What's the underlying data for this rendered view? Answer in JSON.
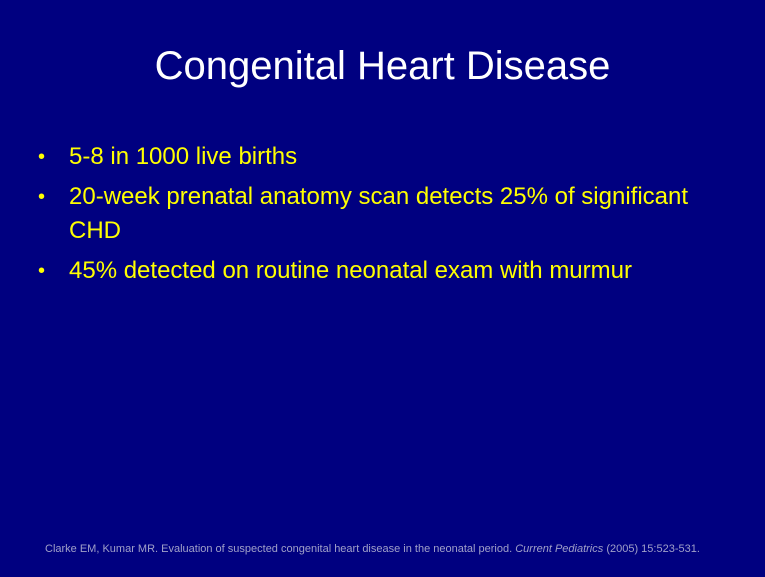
{
  "slide": {
    "title": "Congenital Heart Disease",
    "bullets": [
      "5-8 in 1000 live births",
      "20-week prenatal anatomy scan detects 25% of significant CHD",
      "45% detected on routine neonatal exam with murmur"
    ],
    "bullet_glyph": "•",
    "citation": {
      "authors_title": "Clarke EM, Kumar MR. Evaluation of suspected congenital heart disease in the neonatal period. ",
      "journal": "Current Pediatrics",
      "details": " (2005) 15:523-531."
    },
    "colors": {
      "background": "#000080",
      "title": "#ffffff",
      "bullets": "#ffff00"
    }
  }
}
